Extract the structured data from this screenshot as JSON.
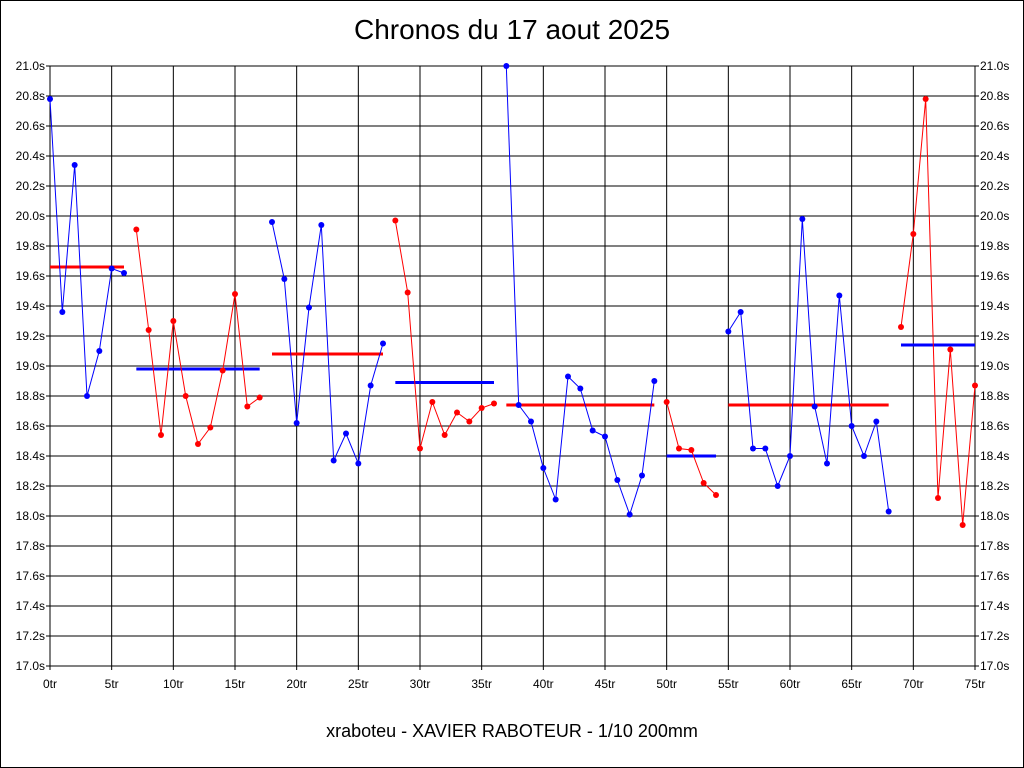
{
  "chart_data": {
    "type": "line",
    "title": "Chronos du 17 aout 2025",
    "subtitle": "xraboteu - XAVIER RABOTEUR - 1/10 200mm",
    "xlim": [
      0,
      75
    ],
    "ylim": [
      17.0,
      21.0
    ],
    "x_ticks": [
      0,
      5,
      10,
      15,
      20,
      25,
      30,
      35,
      40,
      45,
      50,
      55,
      60,
      65,
      70,
      75
    ],
    "x_tick_labels": [
      "0tr",
      "5tr",
      "10tr",
      "15tr",
      "20tr",
      "25tr",
      "30tr",
      "35tr",
      "40tr",
      "45tr",
      "50tr",
      "55tr",
      "60tr",
      "65tr",
      "70tr",
      "75tr"
    ],
    "y_ticks": [
      17.0,
      17.2,
      17.4,
      17.6,
      17.8,
      18.0,
      18.2,
      18.4,
      18.6,
      18.8,
      19.0,
      19.2,
      19.4,
      19.6,
      19.8,
      20.0,
      20.2,
      20.4,
      20.6,
      20.8,
      21.0
    ],
    "y_tick_labels": [
      "17.0s",
      "17.2s",
      "17.4s",
      "17.6s",
      "17.8s",
      "18.0s",
      "18.2s",
      "18.4s",
      "18.6s",
      "18.8s",
      "19.0s",
      "19.2s",
      "19.4s",
      "19.6s",
      "19.8s",
      "20.0s",
      "20.2s",
      "20.4s",
      "20.6s",
      "20.8s",
      "21.0s"
    ],
    "grid": true,
    "colors": {
      "blue": "#0000ff",
      "red": "#ff0000",
      "grid": "#000000"
    },
    "series": [
      {
        "color": "#0000ff",
        "x": [
          0,
          1,
          2,
          3,
          4,
          5,
          6
        ],
        "y": [
          20.78,
          19.36,
          20.34,
          18.8,
          19.1,
          19.65,
          19.62
        ]
      },
      {
        "color": "#ff0000",
        "x": [
          7,
          8,
          9,
          10,
          11,
          12,
          13,
          14,
          15,
          16,
          17
        ],
        "y": [
          19.91,
          19.24,
          18.54,
          19.3,
          18.8,
          18.48,
          18.59,
          18.97,
          19.48,
          18.73,
          18.79
        ]
      },
      {
        "color": "#0000ff",
        "x": [
          18,
          19,
          20,
          21,
          22,
          23,
          24,
          25,
          26,
          27
        ],
        "y": [
          19.96,
          19.58,
          18.62,
          19.39,
          19.94,
          18.37,
          18.55,
          18.35,
          18.87,
          19.15
        ]
      },
      {
        "color": "#ff0000",
        "x": [
          28,
          29,
          30,
          31,
          32,
          33,
          34,
          35,
          36
        ],
        "y": [
          19.97,
          19.49,
          18.45,
          18.76,
          18.54,
          18.69,
          18.63,
          18.72,
          18.75
        ]
      },
      {
        "color": "#0000ff",
        "x": [
          37,
          38,
          39,
          40,
          41,
          42,
          43,
          44,
          45,
          46,
          47,
          48,
          49
        ],
        "y": [
          21.0,
          18.74,
          18.63,
          18.32,
          18.11,
          18.93,
          18.85,
          18.57,
          18.53,
          18.24,
          18.01,
          18.27,
          18.9
        ]
      },
      {
        "color": "#ff0000",
        "x": [
          50,
          51,
          52,
          53,
          54
        ],
        "y": [
          18.76,
          18.45,
          18.44,
          18.22,
          18.14
        ]
      },
      {
        "color": "#0000ff",
        "x": [
          55,
          56,
          57,
          58,
          59,
          60,
          61,
          62,
          63,
          64,
          65,
          66,
          67,
          68
        ],
        "y": [
          19.23,
          19.36,
          18.45,
          18.45,
          18.2,
          18.4,
          19.98,
          18.73,
          18.35,
          19.47,
          18.6,
          18.4,
          18.63,
          18.03
        ]
      },
      {
        "color": "#ff0000",
        "x": [
          69,
          70,
          71,
          72,
          73,
          74,
          75
        ],
        "y": [
          19.26,
          19.88,
          20.78,
          18.12,
          19.11,
          17.94,
          18.87
        ]
      }
    ],
    "averages": [
      {
        "color": "#ff0000",
        "x_start": 0,
        "x_end": 6,
        "y": 19.66
      },
      {
        "color": "#0000ff",
        "x_start": 7,
        "x_end": 17,
        "y": 18.98
      },
      {
        "color": "#ff0000",
        "x_start": 18,
        "x_end": 27,
        "y": 19.08
      },
      {
        "color": "#0000ff",
        "x_start": 28,
        "x_end": 36,
        "y": 18.89
      },
      {
        "color": "#ff0000",
        "x_start": 37,
        "x_end": 49,
        "y": 18.74
      },
      {
        "color": "#0000ff",
        "x_start": 50,
        "x_end": 54,
        "y": 18.4
      },
      {
        "color": "#ff0000",
        "x_start": 55,
        "x_end": 68,
        "y": 18.74
      },
      {
        "color": "#0000ff",
        "x_start": 69,
        "x_end": 75,
        "y": 19.14
      }
    ]
  }
}
